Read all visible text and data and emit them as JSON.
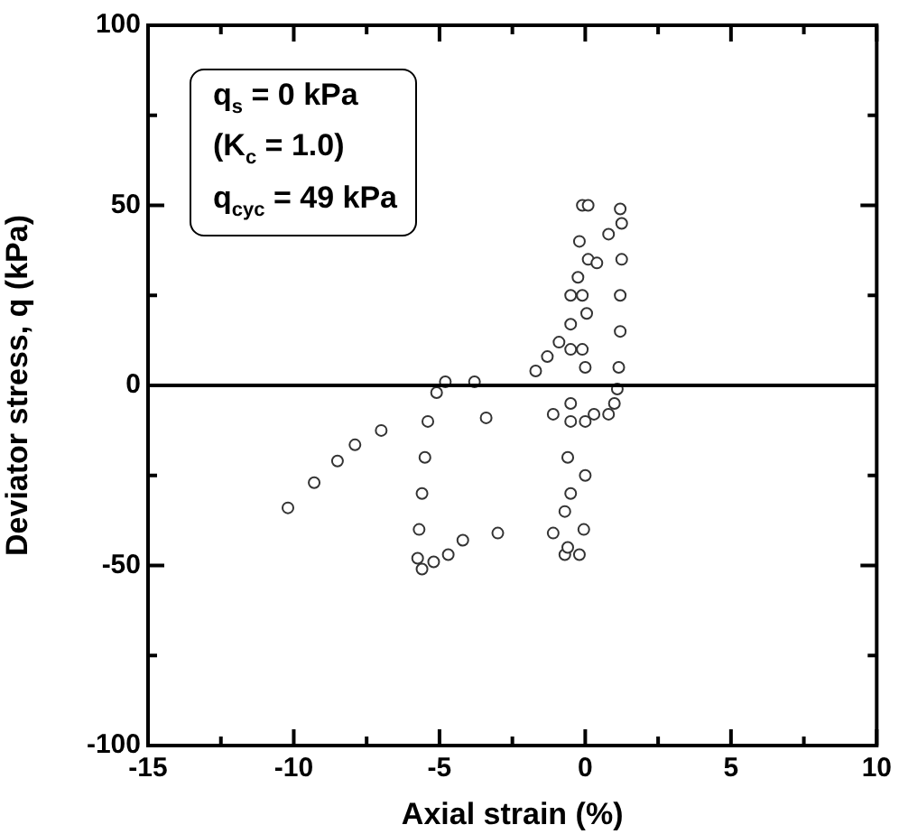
{
  "chart_data": {
    "type": "scatter",
    "xlabel": "Axial strain (%)",
    "ylabel": "Deviator stress, q (kPa)",
    "annotations": [
      "q$_{s}$ = 0 kPa",
      "(K$_{c}$ = 1.0)",
      "q$_{cyc}$ = 49 kPa"
    ],
    "xlim": [
      -15,
      10
    ],
    "xticks": [
      -15,
      {
        "value": -12.5,
        "label": null
      },
      -10,
      {
        "value": -7.5,
        "label": null
      },
      -5,
      {
        "value": -2.5,
        "label": null
      },
      0,
      {
        "value": 2.5,
        "label": null
      },
      5,
      {
        "value": 7.5,
        "label": null
      },
      10
    ],
    "ylim": [
      -100,
      100
    ],
    "yticks": [
      -100,
      {
        "value": -75,
        "label": null
      },
      -50,
      {
        "value": -25,
        "label": null
      },
      0,
      {
        "value": 25,
        "label": null
      },
      50,
      {
        "value": 75,
        "label": null
      },
      100
    ],
    "ref_lines": [
      {
        "axis": "y",
        "value": 0,
        "color": "#000000"
      }
    ],
    "grid": false,
    "legend": false,
    "marker": "circle",
    "series": [
      {
        "color": "#333333",
        "x": [
          -0.7,
          -0.7,
          -0.6,
          -0.5,
          -0.1,
          -0.25,
          -0.2,
          -0.1,
          0.1,
          0.1,
          0.05,
          0,
          0,
          0,
          -0.05,
          -0.2,
          -0.5,
          -0.5,
          -0.5,
          -0.5,
          -0.6,
          -1.7,
          -1.3,
          -0.9,
          -0.5,
          -0.1,
          0.4,
          0.8,
          1.2,
          1.25,
          1.25,
          1.2,
          1.2,
          1.15,
          1.1,
          1.0,
          0.8,
          0.3,
          -1.1,
          -1.1,
          -3.0,
          -3.4,
          -3.8,
          -4.8,
          -5.1,
          -5.4,
          -5.5,
          -5.6,
          -5.7,
          -5.75,
          -5.6,
          -5.2,
          -4.7,
          -4.2,
          -7.0,
          -7.9,
          -8.5,
          -9.3,
          -10.2
        ],
        "values": [
          -47,
          -35,
          -20,
          -5,
          10,
          30,
          40,
          50,
          50,
          35,
          20,
          5,
          -10,
          -25,
          -40,
          -47,
          25,
          10,
          -10,
          -30,
          -45,
          4,
          8,
          12,
          17,
          25,
          34,
          42,
          49,
          45,
          35,
          25,
          15,
          5,
          -1,
          -5,
          -8,
          -8,
          -8,
          -41,
          -41,
          -9,
          1,
          1,
          -2,
          -10,
          -20,
          -30,
          -40,
          -48,
          -51,
          -49,
          -47,
          -43,
          -12.5,
          -16.5,
          -21,
          -27,
          -34
        ]
      }
    ]
  }
}
